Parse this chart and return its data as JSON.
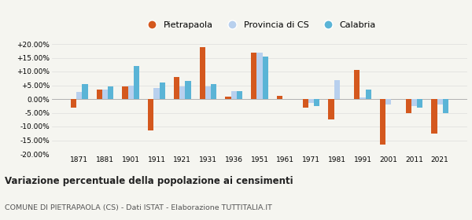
{
  "years": [
    1871,
    1881,
    1901,
    1911,
    1921,
    1931,
    1936,
    1951,
    1961,
    1971,
    1981,
    1991,
    2001,
    2011,
    2021
  ],
  "pietrapaola": [
    -3.0,
    3.5,
    4.5,
    -11.5,
    8.0,
    19.0,
    1.0,
    17.0,
    1.2,
    -3.0,
    -7.5,
    10.5,
    -16.5,
    -5.0,
    -12.5
  ],
  "provincia_cs": [
    2.5,
    3.5,
    5.0,
    4.0,
    4.5,
    4.5,
    3.0,
    17.0,
    null,
    -1.5,
    7.0,
    0.5,
    -2.0,
    -2.5,
    -2.0
  ],
  "calabria": [
    5.5,
    4.5,
    12.0,
    6.0,
    6.5,
    5.5,
    3.0,
    15.5,
    null,
    -2.5,
    null,
    3.5,
    null,
    -3.0,
    -5.0
  ],
  "color_pietrapaola": "#d4581e",
  "color_provincia": "#b8d0ee",
  "color_calabria": "#5ab4d6",
  "bg_color": "#f5f5f0",
  "title": "Variazione percentuale della popolazione ai censimenti",
  "subtitle": "COMUNE DI PIETRAPAOLA (CS) - Dati ISTAT - Elaborazione TUTTITALIA.IT",
  "ylim": [
    -20,
    20
  ],
  "yticks": [
    -20,
    -15,
    -10,
    -5,
    0,
    5,
    10,
    15,
    20
  ],
  "legend_labels": [
    "Pietrapaola",
    "Provincia di CS",
    "Calabria"
  ]
}
